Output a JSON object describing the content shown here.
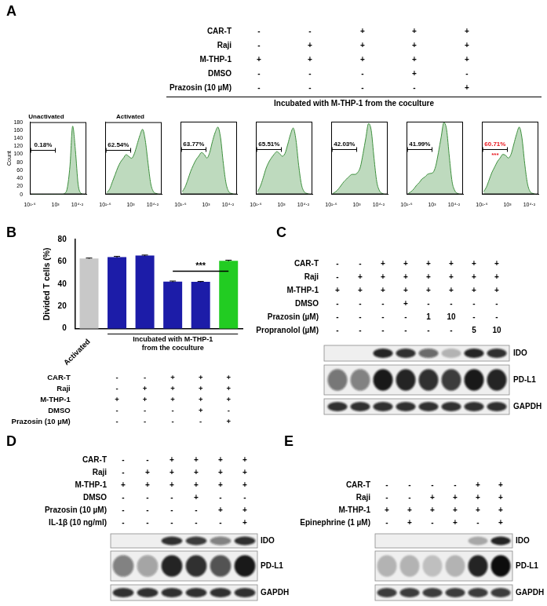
{
  "chart_data": [
    {
      "type": "area",
      "title": "Unactivated",
      "y_label": "Count",
      "color": "#3d8f3d",
      "x": [
        1.7,
        1.85,
        2.0,
        2.15,
        2.3,
        2.45,
        2.6,
        2.75,
        2.9,
        3.05,
        3.2,
        3.35,
        3.5,
        3.65,
        3.8,
        3.95,
        4.1,
        4.25,
        4.4,
        4.55
      ],
      "values": [
        0,
        0,
        0,
        0,
        0,
        0,
        0,
        0,
        0,
        0,
        0,
        0,
        2,
        15,
        70,
        170,
        110,
        25,
        3,
        0
      ],
      "xlim": [
        1.6,
        4.7
      ],
      "xticks": [
        {
          "value": 1.6,
          "label": "10¹·⁶"
        },
        {
          "value": 3,
          "label": "10³"
        },
        {
          "value": 4.2,
          "label": "10⁴·²"
        }
      ],
      "ylim": [
        0,
        180
      ],
      "yticks": [
        0,
        20,
        40,
        60,
        80,
        100,
        120,
        140,
        160,
        180
      ],
      "gate": {
        "range": [
          1.65,
          3.0
        ],
        "label": "0.18%"
      }
    },
    {
      "type": "area",
      "title": "Activated",
      "color": "#3d8f3d",
      "tick_labels": "x",
      "x": [
        1.7,
        1.85,
        2.0,
        2.15,
        2.3,
        2.45,
        2.6,
        2.75,
        2.9,
        3.05,
        3.2,
        3.35,
        3.5,
        3.65,
        3.8,
        3.95,
        4.1,
        4.25,
        4.4,
        4.55
      ],
      "values": [
        2,
        6,
        14,
        22,
        30,
        36,
        40,
        44,
        42,
        40,
        45,
        55,
        65,
        72,
        60,
        35,
        12,
        3,
        1,
        0
      ],
      "xlim": [
        1.6,
        4.7
      ],
      "xticks": [
        {
          "value": 1.6,
          "label": "10¹·⁶"
        },
        {
          "value": 3,
          "label": "10³"
        },
        {
          "value": 4.2,
          "label": "10⁴·²"
        }
      ],
      "ylim": [
        0,
        80
      ],
      "gate": {
        "range": [
          1.65,
          3.0
        ],
        "label": "62.54%"
      }
    },
    {
      "type": "area",
      "color": "#3d8f3d",
      "tick_labels": "x",
      "x": [
        1.7,
        1.85,
        2.0,
        2.15,
        2.3,
        2.45,
        2.6,
        2.75,
        2.9,
        3.05,
        3.2,
        3.35,
        3.5,
        3.65,
        3.8,
        3.95,
        4.1,
        4.25,
        4.4,
        4.55
      ],
      "values": [
        3,
        8,
        16,
        25,
        32,
        38,
        42,
        46,
        44,
        40,
        46,
        58,
        68,
        74,
        62,
        34,
        12,
        3,
        1,
        0
      ],
      "xlim": [
        1.6,
        4.7
      ],
      "xticks": [
        {
          "value": 1.6,
          "label": "10¹·⁶"
        },
        {
          "value": 3,
          "label": "10³"
        },
        {
          "value": 4.2,
          "label": "10⁴·²"
        }
      ],
      "ylim": [
        0,
        80
      ],
      "gate": {
        "range": [
          1.65,
          3.0
        ],
        "label": "63.77%"
      }
    },
    {
      "type": "area",
      "color": "#3d8f3d",
      "tick_labels": "x",
      "x": [
        1.7,
        1.85,
        2.0,
        2.15,
        2.3,
        2.45,
        2.6,
        2.75,
        2.9,
        3.05,
        3.2,
        3.35,
        3.5,
        3.65,
        3.8,
        3.95,
        4.1,
        4.25,
        4.4,
        4.55
      ],
      "values": [
        3,
        9,
        18,
        28,
        35,
        40,
        44,
        47,
        45,
        42,
        45,
        55,
        66,
        73,
        60,
        32,
        11,
        3,
        1,
        0
      ],
      "xlim": [
        1.6,
        4.7
      ],
      "xticks": [
        {
          "value": 1.6,
          "label": "10¹·⁶"
        },
        {
          "value": 3,
          "label": "10³"
        },
        {
          "value": 4.2,
          "label": "10⁴·²"
        }
      ],
      "ylim": [
        0,
        80
      ],
      "gate": {
        "range": [
          1.65,
          3.0
        ],
        "label": "65.51%"
      }
    },
    {
      "type": "area",
      "color": "#3d8f3d",
      "tick_labels": "x",
      "x": [
        1.7,
        1.85,
        2.0,
        2.15,
        2.3,
        2.45,
        2.6,
        2.75,
        2.9,
        3.05,
        3.2,
        3.35,
        3.5,
        3.65,
        3.8,
        3.95,
        4.1,
        4.25,
        4.4,
        4.55
      ],
      "values": [
        1,
        3,
        6,
        10,
        14,
        17,
        20,
        22,
        22,
        24,
        30,
        45,
        62,
        78,
        70,
        40,
        14,
        4,
        1,
        0
      ],
      "xlim": [
        1.6,
        4.7
      ],
      "xticks": [
        {
          "value": 1.6,
          "label": "10¹·⁶"
        },
        {
          "value": 3,
          "label": "10³"
        },
        {
          "value": 4.2,
          "label": "10⁴·²"
        }
      ],
      "ylim": [
        0,
        80
      ],
      "gate": {
        "range": [
          1.65,
          3.0
        ],
        "label": "42.03%"
      }
    },
    {
      "type": "area",
      "color": "#3d8f3d",
      "tick_labels": "x",
      "x": [
        1.7,
        1.85,
        2.0,
        2.15,
        2.3,
        2.45,
        2.6,
        2.75,
        2.9,
        3.05,
        3.2,
        3.35,
        3.5,
        3.65,
        3.8,
        3.95,
        4.1,
        4.25,
        4.4,
        4.55
      ],
      "values": [
        1,
        3,
        6,
        10,
        13,
        17,
        19,
        22,
        23,
        24,
        31,
        46,
        63,
        79,
        71,
        41,
        14,
        4,
        1,
        0
      ],
      "xlim": [
        1.6,
        4.7
      ],
      "xticks": [
        {
          "value": 1.6,
          "label": "10¹·⁶"
        },
        {
          "value": 3,
          "label": "10³"
        },
        {
          "value": 4.2,
          "label": "10⁴·²"
        }
      ],
      "ylim": [
        0,
        80
      ],
      "gate": {
        "range": [
          1.65,
          3.0
        ],
        "label": "41.99%"
      }
    },
    {
      "type": "area",
      "color": "#3d8f3d",
      "tick_labels": "x",
      "x": [
        1.7,
        1.85,
        2.0,
        2.15,
        2.3,
        2.45,
        2.6,
        2.75,
        2.9,
        3.05,
        3.2,
        3.35,
        3.5,
        3.65,
        3.8,
        3.95,
        4.1,
        4.25,
        4.4,
        4.55
      ],
      "values": [
        3,
        8,
        16,
        24,
        30,
        36,
        40,
        44,
        43,
        40,
        44,
        55,
        66,
        74,
        62,
        34,
        12,
        3,
        1,
        0
      ],
      "xlim": [
        1.6,
        4.7
      ],
      "xticks": [
        {
          "value": 1.6,
          "label": "10¹·⁶"
        },
        {
          "value": 3,
          "label": "10³"
        },
        {
          "value": 4.2,
          "label": "10⁴·²"
        }
      ],
      "ylim": [
        0,
        80
      ],
      "gate": {
        "range": [
          1.65,
          3.0
        ],
        "label": "60.71%",
        "color": "#e8141c"
      },
      "annotations": [
        {
          "text": "***",
          "color": "#e8141c"
        }
      ]
    },
    {
      "type": "bar",
      "y_label": "Divided T cells (%)",
      "categories": [
        "Activated",
        null,
        null,
        null,
        null,
        null
      ],
      "values": [
        63.0,
        64.2,
        65.5,
        42.2,
        42.0,
        60.9
      ],
      "errors": [
        0.3,
        0.6,
        0.5,
        0.5,
        0.4,
        0.5
      ],
      "colors": [
        "#c8c8c8",
        "#1c1ca8",
        "#1c1ca8",
        "#1c1ca8",
        "#1c1ca8",
        "#22cc22"
      ],
      "ylim": [
        0,
        80
      ],
      "yticks": [
        0,
        20,
        40,
        60,
        80
      ],
      "significance": [
        {
          "from": 3,
          "to": 5,
          "y": 52,
          "text": "***"
        }
      ]
    }
  ],
  "panels": {
    "A": {
      "letter": "A",
      "conditions": [
        {
          "label": "CAR-T",
          "marks": [
            "-",
            "-",
            "+",
            "+",
            "+"
          ]
        },
        {
          "label": "Raji",
          "marks": [
            "-",
            "+",
            "+",
            "+",
            "+"
          ]
        },
        {
          "label": "M-THP-1",
          "marks": [
            "+",
            "+",
            "+",
            "+",
            "+"
          ]
        },
        {
          "label": "DMSO",
          "marks": [
            "-",
            "-",
            "-",
            "+",
            "-"
          ]
        },
        {
          "label": "Prazosin (10 µM)",
          "marks": [
            "-",
            "-",
            "-",
            "-",
            "+"
          ]
        }
      ],
      "group_label": "Incubated with M-THP-1 from the coculture"
    },
    "B": {
      "letter": "B",
      "conditions": [
        {
          "label": "CAR-T",
          "marks": [
            "-",
            "-",
            "+",
            "+",
            "+"
          ]
        },
        {
          "label": "Raji",
          "marks": [
            "-",
            "+",
            "+",
            "+",
            "+"
          ]
        },
        {
          "label": "M-THP-1",
          "marks": [
            "+",
            "+",
            "+",
            "+",
            "+"
          ]
        },
        {
          "label": "DMSO",
          "marks": [
            "-",
            "-",
            "-",
            "+",
            "-"
          ]
        },
        {
          "label": "Prazosin (10 µM)",
          "marks": [
            "-",
            "-",
            "-",
            "-",
            "+"
          ]
        }
      ],
      "group_label": [
        "Incubated with M-THP-1",
        "from the coculture"
      ]
    },
    "C": {
      "letter": "C",
      "conditions": [
        {
          "label": "CAR-T",
          "marks": [
            "-",
            "-",
            "+",
            "+",
            "+",
            "+",
            "+",
            "+"
          ]
        },
        {
          "label": "Raji",
          "marks": [
            "-",
            "+",
            "+",
            "+",
            "+",
            "+",
            "+",
            "+"
          ]
        },
        {
          "label": "M-THP-1",
          "marks": [
            "+",
            "+",
            "+",
            "+",
            "+",
            "+",
            "+",
            "+"
          ]
        },
        {
          "label": "DMSO",
          "marks": [
            "-",
            "-",
            "-",
            "+",
            "-",
            "-",
            "-",
            "-"
          ]
        },
        {
          "label": "Prazosin (µM)",
          "marks": [
            "-",
            "-",
            "-",
            "-",
            "1",
            "10",
            "-",
            "-"
          ]
        },
        {
          "label": "Propranolol (µM)",
          "marks": [
            "-",
            "-",
            "-",
            "-",
            "-",
            "-",
            "5",
            "10"
          ]
        }
      ],
      "blots": [
        {
          "name": "IDO",
          "intensity": [
            0,
            0,
            0.9,
            0.85,
            0.6,
            0.25,
            0.9,
            0.85
          ]
        },
        {
          "name": "PD-L1",
          "intensity": [
            0.55,
            0.5,
            0.95,
            0.9,
            0.85,
            0.8,
            0.95,
            0.9
          ]
        },
        {
          "name": "GAPDH",
          "intensity": [
            0.85,
            0.85,
            0.85,
            0.85,
            0.85,
            0.85,
            0.85,
            0.85
          ]
        }
      ]
    },
    "D": {
      "letter": "D",
      "conditions": [
        {
          "label": "CAR-T",
          "marks": [
            "-",
            "-",
            "+",
            "+",
            "+",
            "+"
          ]
        },
        {
          "label": "Raji",
          "marks": [
            "-",
            "+",
            "+",
            "+",
            "+",
            "+"
          ]
        },
        {
          "label": "M-THP-1",
          "marks": [
            "+",
            "+",
            "+",
            "+",
            "+",
            "+"
          ]
        },
        {
          "label": "DMSO",
          "marks": [
            "-",
            "-",
            "-",
            "+",
            "-",
            "-"
          ]
        },
        {
          "label": "Prazosin (10 µM)",
          "marks": [
            "-",
            "-",
            "-",
            "-",
            "+",
            "+"
          ]
        },
        {
          "label": "IL-1β (10 ng/ml)",
          "marks": [
            "-",
            "-",
            "-",
            "-",
            "-",
            "+"
          ]
        }
      ],
      "blots": [
        {
          "name": "IDO",
          "intensity": [
            0,
            0,
            0.85,
            0.8,
            0.5,
            0.85
          ]
        },
        {
          "name": "PD-L1",
          "intensity": [
            0.5,
            0.35,
            0.9,
            0.85,
            0.7,
            0.95
          ]
        },
        {
          "name": "GAPDH",
          "intensity": [
            0.85,
            0.85,
            0.85,
            0.85,
            0.85,
            0.85
          ]
        }
      ]
    },
    "E": {
      "letter": "E",
      "conditions": [
        {
          "label": "CAR-T",
          "marks": [
            "-",
            "-",
            "-",
            "-",
            "+",
            "+"
          ]
        },
        {
          "label": "Raji",
          "marks": [
            "-",
            "-",
            "+",
            "+",
            "+",
            "+"
          ]
        },
        {
          "label": "M-THP-1",
          "marks": [
            "+",
            "+",
            "+",
            "+",
            "+",
            "+"
          ]
        },
        {
          "label": "Epinephrine (1 µM)",
          "marks": [
            "-",
            "+",
            "-",
            "+",
            "-",
            "+"
          ]
        }
      ],
      "blots": [
        {
          "name": "IDO",
          "intensity": [
            0,
            0,
            0,
            0,
            0.3,
            0.9
          ]
        },
        {
          "name": "PD-L1",
          "intensity": [
            0.25,
            0.25,
            0.2,
            0.25,
            0.9,
            1
          ]
        },
        {
          "name": "GAPDH",
          "intensity": [
            0.8,
            0.8,
            0.8,
            0.8,
            0.8,
            0.8
          ]
        }
      ]
    }
  }
}
